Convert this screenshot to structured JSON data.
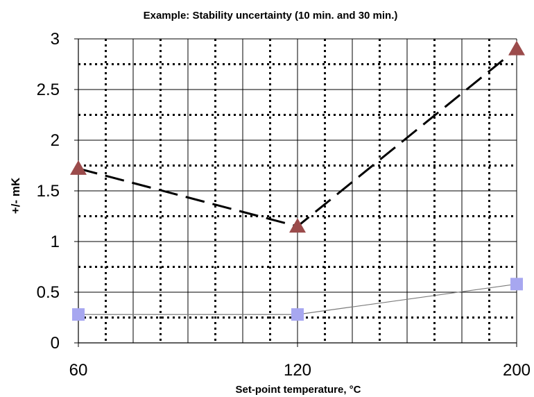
{
  "chart_data": {
    "type": "line",
    "title": "Example:  Stability uncertainty (10 min. and 30 min.)",
    "xlabel": "Set-point temperature, °C",
    "ylabel": "+/- mK",
    "x_ticks": [
      "60",
      "120",
      "200"
    ],
    "y_ticks": [
      "0",
      "0.5",
      "1",
      "1.5",
      "2",
      "2.5",
      "3"
    ],
    "ylim": [
      0,
      3
    ],
    "grid": true,
    "series": [
      {
        "marker": "triangle",
        "color": "#9b4b4b",
        "line_style": "dashed",
        "points": [
          {
            "x": 60,
            "y": 1.72
          },
          {
            "x": 120,
            "y": 1.15
          },
          {
            "x": 200,
            "y": 2.9
          }
        ]
      },
      {
        "marker": "square",
        "color": "#a7a7f0",
        "line_style": "solid",
        "points": [
          {
            "x": 60,
            "y": 0.28
          },
          {
            "x": 120,
            "y": 0.28
          },
          {
            "x": 200,
            "y": 0.58
          }
        ]
      }
    ]
  }
}
